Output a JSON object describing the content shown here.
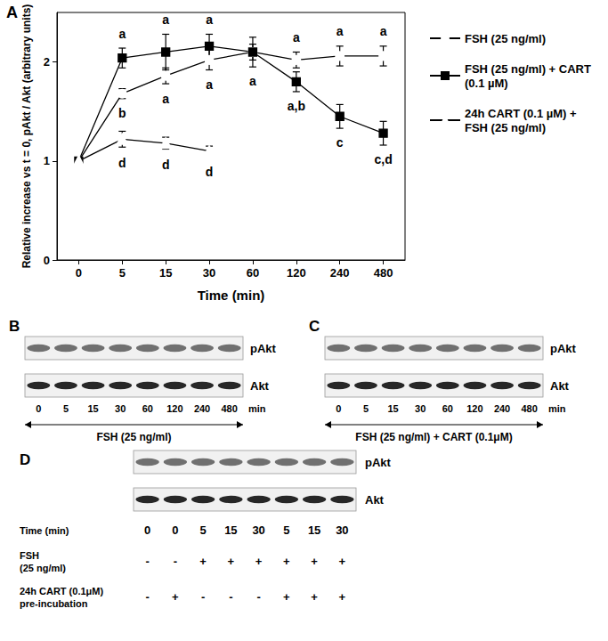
{
  "chart_data": {
    "type": "line",
    "panel_label": "A",
    "x_label": "Time (min)",
    "y_label": "Relative increase vs t = 0, pAkt / Akt (arbitrary units)",
    "categories": [
      "0",
      "5",
      "15",
      "30",
      "60",
      "120",
      "240",
      "480"
    ],
    "ylim": [
      0,
      2.5
    ],
    "yticks": [
      0,
      1,
      2
    ],
    "grid": false,
    "legend": "right",
    "series": [
      {
        "name": "FSH (25 ng/ml)",
        "color": "#000000",
        "marker": "emptyCircle",
        "values": [
          1,
          1.68,
          1.86,
          2.02,
          2.1,
          2.02,
          2.06,
          2.06
        ],
        "errors": [
          0,
          0.05,
          0.08,
          0.1,
          0.08,
          0.08,
          0.1,
          0.1
        ],
        "letters": [
          null,
          "b",
          "a",
          "a",
          null,
          "a",
          "a",
          "a"
        ]
      },
      {
        "name": "FSH (25 ng/ml) + CART (0.1 µM)",
        "color": "#000000",
        "marker": "rect",
        "values": [
          1,
          2.04,
          2.1,
          2.16,
          2.1,
          1.8,
          1.45,
          1.28
        ],
        "errors": [
          0,
          0.1,
          0.18,
          0.12,
          0.15,
          0.1,
          0.12,
          0.12
        ],
        "letters": [
          null,
          "a",
          "a",
          "a",
          "a",
          "a,b",
          "c",
          "c,d"
        ]
      },
      {
        "name": "24h CART (0.1 µM) + FSH (25 ng/ml)",
        "color": "#000000",
        "marker": "emptyTriangle",
        "values": [
          1,
          1.22,
          1.18,
          1.1,
          null,
          null,
          null,
          null
        ],
        "errors": [
          0,
          0.08,
          0.06,
          0.05,
          null,
          null,
          null,
          null
        ],
        "letters": [
          null,
          "d",
          "d",
          "d",
          null,
          null,
          null,
          null
        ]
      }
    ]
  },
  "blots": [
    {
      "panel_label": "B",
      "rows": [
        "pAkt",
        "Akt"
      ],
      "lanes": [
        "0",
        "5",
        "15",
        "30",
        "60",
        "120",
        "240",
        "480"
      ],
      "unit": "min",
      "caption": "FSH (25 ng/ml)"
    },
    {
      "panel_label": "C",
      "rows": [
        "pAkt",
        "Akt"
      ],
      "lanes": [
        "0",
        "5",
        "15",
        "30",
        "60",
        "120",
        "240",
        "480"
      ],
      "unit": "min",
      "caption": "FSH (25 ng/ml) + CART (0.1μM)"
    },
    {
      "panel_label": "D",
      "rows": [
        "pAkt",
        "Akt"
      ],
      "table": [
        {
          "label": [
            "Time (min)"
          ],
          "cells": [
            "0",
            "0",
            "5",
            "15",
            "30",
            "5",
            "15",
            "30"
          ]
        },
        {
          "label": [
            "FSH",
            "(25 ng/ml)"
          ],
          "cells": [
            "-",
            "-",
            "+",
            "+",
            "+",
            "+",
            "+",
            "+"
          ]
        },
        {
          "label": [
            "24h CART (0.1μM)",
            "pre-incubation"
          ],
          "cells": [
            "-",
            "+",
            "-",
            "-",
            "-",
            "+",
            "+",
            "+"
          ]
        }
      ]
    }
  ]
}
